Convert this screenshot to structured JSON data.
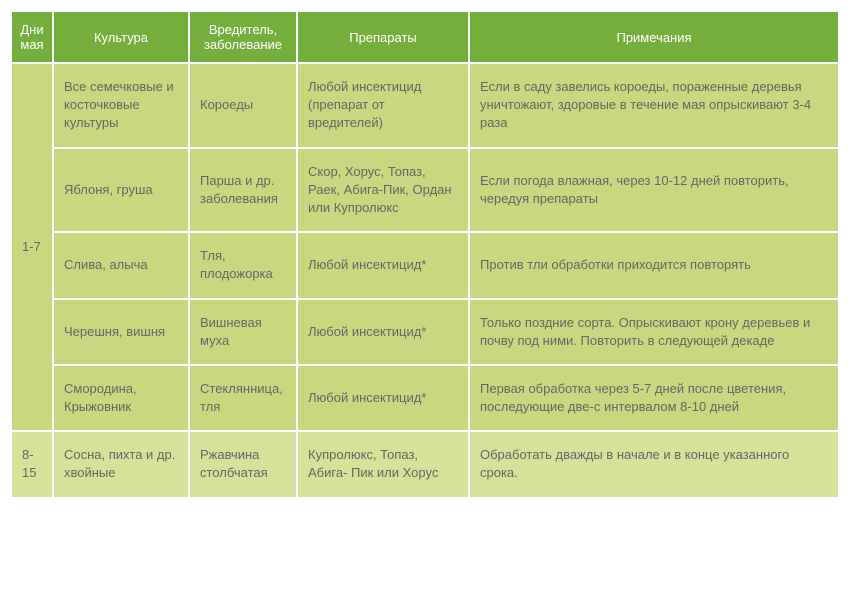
{
  "headers": {
    "days": "Дни мая",
    "culture": "Культура",
    "pest": "Вредитель, заболевание",
    "preparations": "Препараты",
    "notes": "Примечания"
  },
  "groups": [
    {
      "days": "1-7",
      "rows": [
        {
          "culture": "Все семечковые и косточковые культуры",
          "pest": "Короеды",
          "prep": "Любой инсектицид (препарат от вредителей)",
          "note": "Если в саду завелись короеды, пораженные деревья уничтожают, здоровые в течение мая опрыскивают 3-4 раза"
        },
        {
          "culture": "Яблоня, груша",
          "pest": "Парша и др. заболевания",
          "prep": "Скор, Хорус, Топаз, Раек, Абига-Пик, Ордан или Купролюкс",
          "note": "Если погода влажная, через 10-12 дней повторить, чередуя препараты"
        },
        {
          "culture": "Слива, алыча",
          "pest": "Тля, плодожорка",
          "prep": "Любой инсектицид*",
          "note": "Против тли обработки приходится повторять"
        },
        {
          "culture": "Черешня, вишня",
          "pest": "Вишневая муха",
          "prep": "Любой инсектицид*",
          "note": "Только поздние сорта. Опрыскивают крону деревьев и почву под ними. Повторить в следующей декаде"
        },
        {
          "culture": "Смородина, Крыжовник",
          "pest": "Стеклянница, тля",
          "prep": "Любой инсектицид*",
          "note": "Первая обработка через 5-7 дней после цветения, последующие две-с интервалом 8-10 дней"
        }
      ]
    },
    {
      "days": "8-15",
      "rows": [
        {
          "culture": "Сосна, пихта и др. хвойные",
          "pest": "Ржавчина столбчатая",
          "prep": "Купролюкс, Топаз, Абига- Пик или Хорус",
          "note": "Обработать дважды в начале и в конце указанного срока."
        }
      ]
    }
  ]
}
